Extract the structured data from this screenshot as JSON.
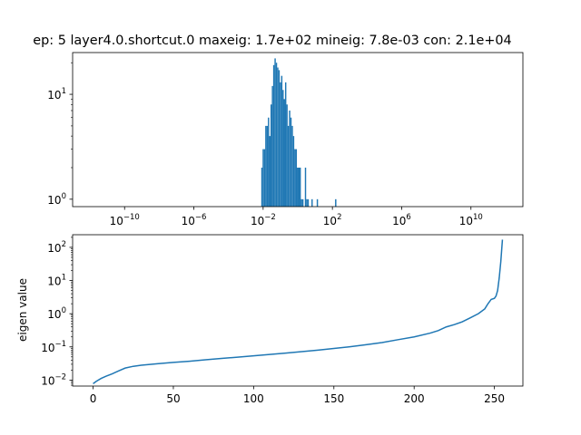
{
  "chart_data": [
    {
      "type": "bar",
      "subtype": "histogram",
      "title": "ep: 5 layer4.0.shortcut.0 maxeig: 1.7e+02 mineig: 7.8e-03 con: 2.1e+04",
      "xlabel": "",
      "ylabel": "",
      "xscale": "log",
      "yscale": "log",
      "xlim": [
        1e-13,
        10000000000000.0
      ],
      "ylim": [
        0.85,
        25
      ],
      "grid": false,
      "color": "#1f77b4",
      "x_ticks": [
        {
          "value": 1e-10,
          "base": "10",
          "exp": "−10"
        },
        {
          "value": 1e-06,
          "base": "10",
          "exp": "−6"
        },
        {
          "value": 0.01,
          "base": "10",
          "exp": "−2"
        },
        {
          "value": 100.0,
          "base": "10",
          "exp": "2"
        },
        {
          "value": 1000000.0,
          "base": "10",
          "exp": "6"
        },
        {
          "value": 10000000000.0,
          "base": "10",
          "exp": "10"
        }
      ],
      "y_ticks": [
        {
          "value": 1,
          "base": "10",
          "exp": "0"
        },
        {
          "value": 10,
          "base": "10",
          "exp": "1"
        }
      ],
      "bins": [
        {
          "x0": 0.0078,
          "x1": 0.0093,
          "count": 2
        },
        {
          "x0": 0.0093,
          "x1": 0.0111,
          "count": 3
        },
        {
          "x0": 0.0111,
          "x1": 0.0132,
          "count": 3
        },
        {
          "x0": 0.0132,
          "x1": 0.0158,
          "count": 5
        },
        {
          "x0": 0.0158,
          "x1": 0.0188,
          "count": 5
        },
        {
          "x0": 0.0188,
          "x1": 0.0224,
          "count": 6
        },
        {
          "x0": 0.0224,
          "x1": 0.0267,
          "count": 4
        },
        {
          "x0": 0.0267,
          "x1": 0.0318,
          "count": 8
        },
        {
          "x0": 0.0318,
          "x1": 0.0379,
          "count": 12
        },
        {
          "x0": 0.0379,
          "x1": 0.0452,
          "count": 19
        },
        {
          "x0": 0.0452,
          "x1": 0.0539,
          "count": 22
        },
        {
          "x0": 0.0539,
          "x1": 0.0642,
          "count": 20
        },
        {
          "x0": 0.0642,
          "x1": 0.0765,
          "count": 18
        },
        {
          "x0": 0.0765,
          "x1": 0.0912,
          "count": 17
        },
        {
          "x0": 0.0912,
          "x1": 0.109,
          "count": 13
        },
        {
          "x0": 0.109,
          "x1": 0.13,
          "count": 15
        },
        {
          "x0": 0.13,
          "x1": 0.154,
          "count": 11
        },
        {
          "x0": 0.154,
          "x1": 0.184,
          "count": 9
        },
        {
          "x0": 0.184,
          "x1": 0.219,
          "count": 13
        },
        {
          "x0": 0.219,
          "x1": 0.261,
          "count": 8
        },
        {
          "x0": 0.261,
          "x1": 0.311,
          "count": 5
        },
        {
          "x0": 0.311,
          "x1": 0.371,
          "count": 7
        },
        {
          "x0": 0.371,
          "x1": 0.442,
          "count": 6
        },
        {
          "x0": 0.442,
          "x1": 0.527,
          "count": 5
        },
        {
          "x0": 0.527,
          "x1": 0.628,
          "count": 4
        },
        {
          "x0": 0.628,
          "x1": 0.748,
          "count": 3
        },
        {
          "x0": 0.748,
          "x1": 0.892,
          "count": 3
        },
        {
          "x0": 0.892,
          "x1": 1.06,
          "count": 2
        },
        {
          "x0": 1.06,
          "x1": 1.27,
          "count": 2
        },
        {
          "x0": 1.27,
          "x1": 1.51,
          "count": 2
        },
        {
          "x0": 1.51,
          "x1": 1.8,
          "count": 1
        },
        {
          "x0": 1.8,
          "x1": 2.15,
          "count": 1
        },
        {
          "x0": 2.56,
          "x1": 3.05,
          "count": 2
        },
        {
          "x0": 3.05,
          "x1": 3.64,
          "count": 1
        },
        {
          "x0": 3.64,
          "x1": 4.34,
          "count": 1
        },
        {
          "x0": 6.15,
          "x1": 7.33,
          "count": 1
        },
        {
          "x0": 12.4,
          "x1": 14.8,
          "count": 1
        },
        {
          "x0": 142,
          "x1": 170,
          "count": 1
        }
      ]
    },
    {
      "type": "line",
      "title": "",
      "xlabel": "",
      "ylabel": "eigen value",
      "yscale": "log",
      "xlim": [
        -12.75,
        267.75
      ],
      "ylim": [
        0.0066,
        240
      ],
      "grid": false,
      "color": "#1f77b4",
      "x_ticks": [
        {
          "value": 0,
          "label": "0"
        },
        {
          "value": 50,
          "label": "50"
        },
        {
          "value": 100,
          "label": "100"
        },
        {
          "value": 150,
          "label": "150"
        },
        {
          "value": 200,
          "label": "200"
        },
        {
          "value": 250,
          "label": "250"
        }
      ],
      "y_ticks": [
        {
          "value": 0.01,
          "base": "10",
          "exp": "−2"
        },
        {
          "value": 0.1,
          "base": "10",
          "exp": "−1"
        },
        {
          "value": 1,
          "base": "10",
          "exp": "0"
        },
        {
          "value": 10,
          "base": "10",
          "exp": "1"
        },
        {
          "value": 100,
          "base": "10",
          "exp": "2"
        }
      ],
      "points": [
        [
          0,
          0.0078
        ],
        [
          2,
          0.0092
        ],
        [
          5,
          0.0112
        ],
        [
          8,
          0.013
        ],
        [
          12,
          0.0155
        ],
        [
          16,
          0.019
        ],
        [
          20,
          0.023
        ],
        [
          25,
          0.026
        ],
        [
          30,
          0.028
        ],
        [
          40,
          0.031
        ],
        [
          50,
          0.034
        ],
        [
          60,
          0.037
        ],
        [
          70,
          0.041
        ],
        [
          80,
          0.045
        ],
        [
          90,
          0.049
        ],
        [
          100,
          0.054
        ],
        [
          110,
          0.059
        ],
        [
          120,
          0.065
        ],
        [
          130,
          0.072
        ],
        [
          140,
          0.08
        ],
        [
          150,
          0.09
        ],
        [
          160,
          0.101
        ],
        [
          170,
          0.116
        ],
        [
          180,
          0.135
        ],
        [
          190,
          0.165
        ],
        [
          200,
          0.2
        ],
        [
          210,
          0.26
        ],
        [
          215,
          0.31
        ],
        [
          220,
          0.4
        ],
        [
          225,
          0.47
        ],
        [
          230,
          0.57
        ],
        [
          235,
          0.75
        ],
        [
          240,
          1.0
        ],
        [
          244,
          1.4
        ],
        [
          246,
          2.0
        ],
        [
          248,
          2.7
        ],
        [
          250,
          2.9
        ],
        [
          251,
          3.4
        ],
        [
          252,
          5.0
        ],
        [
          253,
          12.0
        ],
        [
          254,
          38.0
        ],
        [
          255,
          170.0
        ]
      ]
    }
  ]
}
